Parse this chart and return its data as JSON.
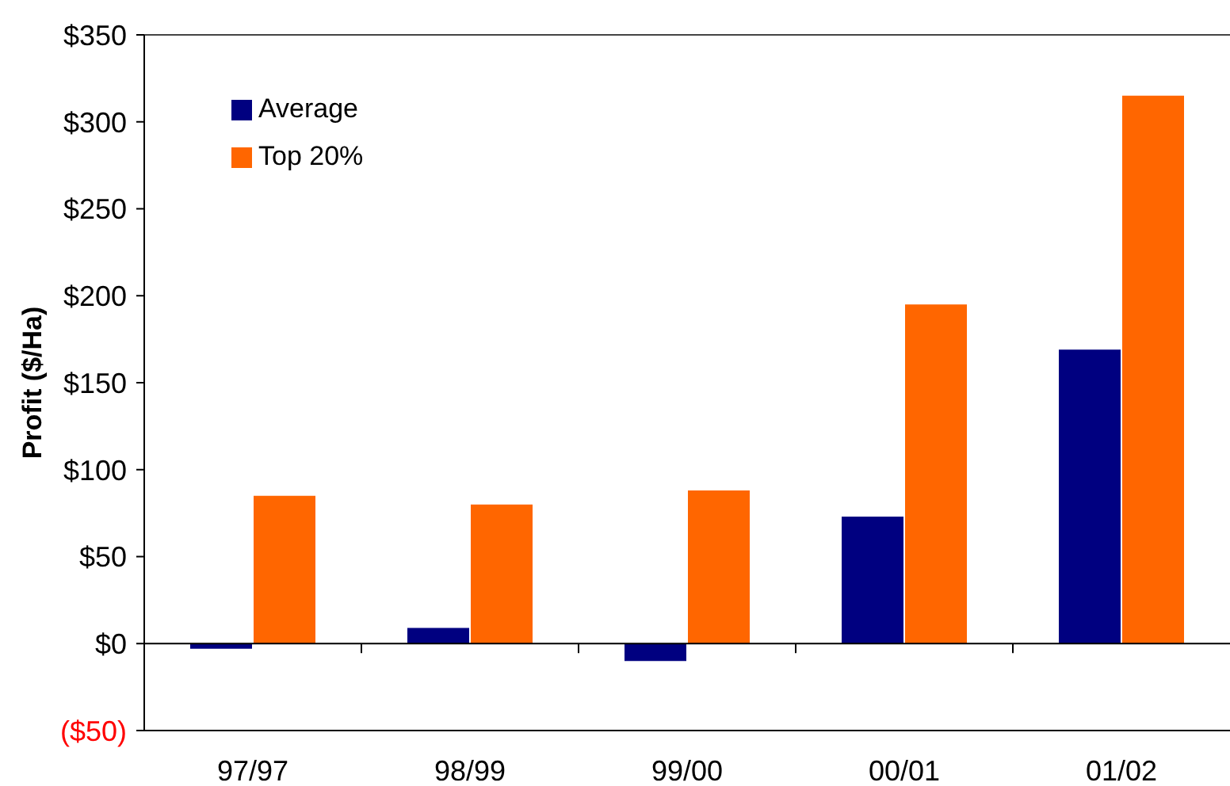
{
  "chart_data": {
    "type": "bar",
    "categories": [
      "97/97",
      "98/99",
      "99/00",
      "00/01",
      "01/02"
    ],
    "series": [
      {
        "name": "Average",
        "color": "#000080",
        "values": [
          -3,
          9,
          -10,
          73,
          169
        ]
      },
      {
        "name": "Top 20%",
        "color": "#ff6600",
        "values": [
          85,
          80,
          88,
          195,
          315
        ]
      }
    ],
    "ylabel": "Profit ($/Ha)",
    "ylim": [
      -50,
      350
    ],
    "yticks": [
      {
        "value": -50,
        "label": "($50)"
      },
      {
        "value": 0,
        "label": "$0"
      },
      {
        "value": 50,
        "label": "$50"
      },
      {
        "value": 100,
        "label": "$100"
      },
      {
        "value": 150,
        "label": "$150"
      },
      {
        "value": 200,
        "label": "$200"
      },
      {
        "value": 250,
        "label": "$250"
      },
      {
        "value": 300,
        "label": "$300"
      },
      {
        "value": 350,
        "label": "$350"
      }
    ],
    "legend": "top left"
  }
}
